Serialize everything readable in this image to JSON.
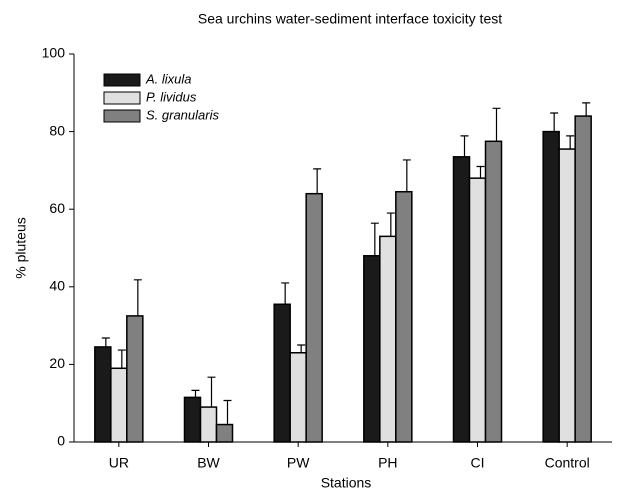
{
  "chart_data": {
    "type": "bar",
    "title": "Sea urchins water-sediment interface toxicity test",
    "x_label": "Stations",
    "y_label": "% pluteus",
    "categories": [
      "UR",
      "BW",
      "PW",
      "PH",
      "CI",
      "Control"
    ],
    "series": [
      {
        "name": "A. lixula",
        "color": "#1a1a1a",
        "values": [
          24.5,
          11.5,
          35.5,
          48,
          73.5,
          80
        ],
        "errors": [
          2.3,
          1.8,
          5.5,
          8.4,
          5.4,
          4.8
        ]
      },
      {
        "name": "P. lividus",
        "color": "#e0e0e0",
        "values": [
          19,
          9,
          23,
          53,
          68,
          75.5
        ],
        "errors": [
          4.7,
          7.7,
          2,
          6,
          3,
          3.4
        ]
      },
      {
        "name": "S. granularis",
        "color": "#808080",
        "values": [
          32.5,
          4.5,
          64,
          64.5,
          77.5,
          84
        ],
        "errors": [
          9.3,
          6.2,
          6.4,
          8.2,
          8.5,
          3.4
        ]
      }
    ],
    "ylim": [
      0,
      100
    ],
    "yticks": [
      0,
      20,
      40,
      60,
      80,
      100
    ],
    "legend": "top-left"
  }
}
